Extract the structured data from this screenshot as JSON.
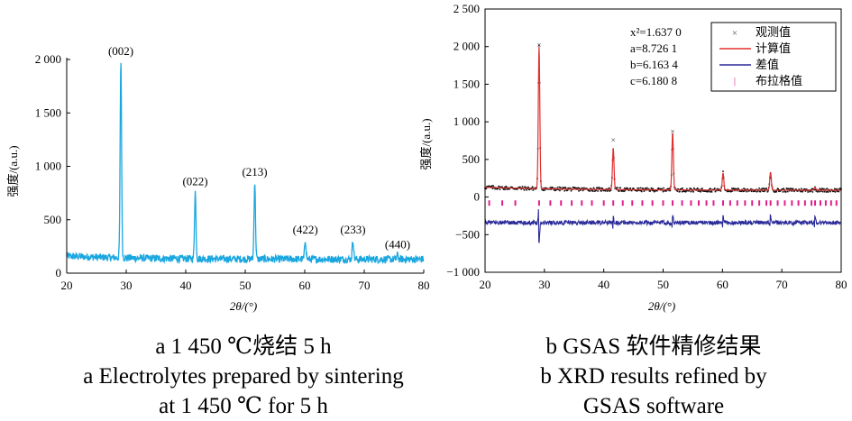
{
  "chart_data": [
    {
      "type": "line",
      "xlabel": "2θ/(°)",
      "ylabel": "强度/(a.u.)",
      "xlim": [
        20,
        80
      ],
      "ylim": [
        0,
        2000
      ],
      "xticks": [
        "20",
        "30",
        "40",
        "50",
        "60",
        "70",
        "80"
      ],
      "yticks": [
        "0",
        "500",
        "1 000",
        "1 500",
        "2 000"
      ],
      "color": "#1aa7e0",
      "background": 150,
      "peaks": [
        {
          "label": "(002)",
          "x": 29.1,
          "y": 2000
        },
        {
          "label": "(022)",
          "x": 41.6,
          "y": 780
        },
        {
          "label": "(213)",
          "x": 51.6,
          "y": 870
        },
        {
          "label": "(422)",
          "x": 60.1,
          "y": 330
        },
        {
          "label": "(233)",
          "x": 68.1,
          "y": 330
        },
        {
          "label": "(440)",
          "x": 75.6,
          "y": 190
        }
      ],
      "caption": [
        "a  1 450 ℃烧结 5 h",
        "a  Electrolytes prepared by sintering",
        "at 1 450 ℃ for 5 h"
      ]
    },
    {
      "type": "line",
      "xlabel": "2θ/(°)",
      "ylabel": "强度/(a.u.)",
      "xlim": [
        20,
        80
      ],
      "ylim": [
        -1000,
        2500
      ],
      "xticks": [
        "20",
        "30",
        "40",
        "50",
        "60",
        "70",
        "80"
      ],
      "yticks": [
        "−1 000",
        "−500",
        "0",
        "500",
        "1 000",
        "1 500",
        "2 000",
        "2 500"
      ],
      "stats": [
        "x²=1.637 0",
        "a=8.726 1",
        "b=6.163 4",
        "c=6.180 8"
      ],
      "legend": {
        "position": "top-right",
        "entries": [
          {
            "label": "观测值",
            "marker": "×",
            "color": "#555555"
          },
          {
            "label": "计算值",
            "marker": "line",
            "color": "#e03030"
          },
          {
            "label": "差值",
            "marker": "line",
            "color": "#2a2a9a"
          },
          {
            "label": "布拉格值",
            "marker": "|",
            "color": "#e0208a"
          }
        ]
      },
      "observed_color": "#111111",
      "calculated_color": "#e03030",
      "difference_color": "#2a2a9a",
      "bragg_color": "#e0208a",
      "background": 150,
      "difference_offset": -340,
      "bragg_row_y": -80,
      "peaks": [
        {
          "x": 29.1,
          "y": 2000
        },
        {
          "x": 41.6,
          "y": 650
        },
        {
          "x": 51.6,
          "y": 850
        },
        {
          "x": 60.1,
          "y": 320
        },
        {
          "x": 68.1,
          "y": 330
        },
        {
          "x": 75.6,
          "y": 130
        }
      ],
      "bragg_positions": [
        20.7,
        22.9,
        25.1,
        29.1,
        31.0,
        32.8,
        34.6,
        36.3,
        38.0,
        40.0,
        41.6,
        43.2,
        44.8,
        46.5,
        48.2,
        50.0,
        51.6,
        53.2,
        54.7,
        56.0,
        57.3,
        58.5,
        60.1,
        61.3,
        62.5,
        63.8,
        65.0,
        66.2,
        67.4,
        68.1,
        69.3,
        70.5,
        71.7,
        72.8,
        73.9,
        75.0,
        75.6,
        76.5,
        77.4,
        78.3,
        79.2
      ],
      "caption": [
        "b  GSAS 软件精修结果",
        "b  XRD results refined by",
        "GSAS software"
      ]
    }
  ]
}
